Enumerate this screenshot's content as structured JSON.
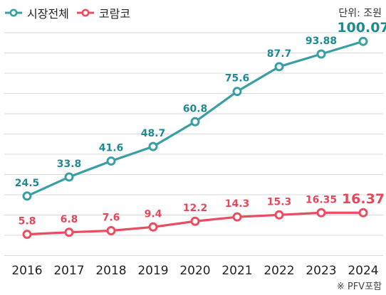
{
  "legend": {
    "series0": "시장전체",
    "series1": "코람코"
  },
  "unit_label": "단위: 조원",
  "footnote": "※ PFV포함",
  "colors": {
    "series0": "#3a9fa5",
    "series1": "#ea4c61",
    "label0": "#1f8a90",
    "label1": "#e8475b",
    "grid": "#d9d9d9"
  },
  "chart_data": {
    "type": "line",
    "x": [
      "2016",
      "2017",
      "2018",
      "2019",
      "2020",
      "2021",
      "2022",
      "2023",
      "2024"
    ],
    "series": [
      {
        "name": "시장전체",
        "values": [
          24.5,
          33.8,
          41.6,
          48.7,
          60.8,
          75.6,
          87.7,
          93.88,
          100.07
        ],
        "labels": [
          "24.5",
          "33.8",
          "41.6",
          "48.7",
          "60.8",
          "75.6",
          "87.7",
          "93.88",
          "100.07"
        ]
      },
      {
        "name": "코람코",
        "values": [
          5.8,
          6.8,
          7.6,
          9.4,
          12.2,
          14.3,
          15.3,
          16.35,
          16.37
        ],
        "labels": [
          "5.8",
          "6.8",
          "7.6",
          "9.4",
          "12.2",
          "14.3",
          "15.3",
          "16.35",
          "16.37"
        ]
      }
    ],
    "ylim": [
      -3,
      105
    ],
    "grid": true,
    "legend_position": "top-left"
  }
}
